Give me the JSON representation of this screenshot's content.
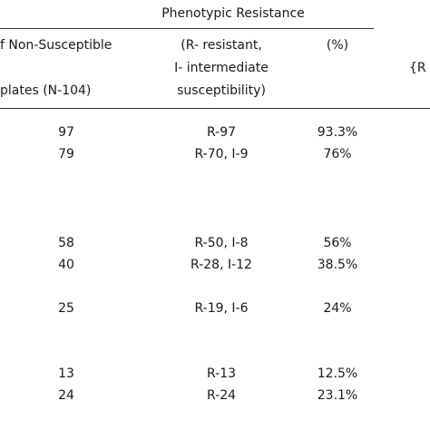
{
  "header": {
    "group_title": "Phenotypic Resistance",
    "col1": {
      "line1": "f Non-Susceptible",
      "line2": "plates (N-104)"
    },
    "col2": {
      "line1": "(R- resistant,",
      "line2": "I- intermediate",
      "line3": "susceptibility)"
    },
    "col3": {
      "label": "(%)"
    },
    "col4": {
      "label": "{R"
    }
  },
  "rows": [
    {
      "count": "97",
      "breakdown": "R-97",
      "percent": "93.3%"
    },
    {
      "count": "79",
      "breakdown": "R-70, I-9",
      "percent": "76%"
    },
    {
      "count": "58",
      "breakdown": "R-50, I-8",
      "percent": "56%"
    },
    {
      "count": "40",
      "breakdown": "R-28, I-12",
      "percent": "38.5%"
    },
    {
      "count": "25",
      "breakdown": "R-19, I-6",
      "percent": "24%"
    },
    {
      "count": "13",
      "breakdown": "R-13",
      "percent": "12.5%"
    },
    {
      "count": "24",
      "breakdown": "R-24",
      "percent": "23.1%"
    }
  ]
}
